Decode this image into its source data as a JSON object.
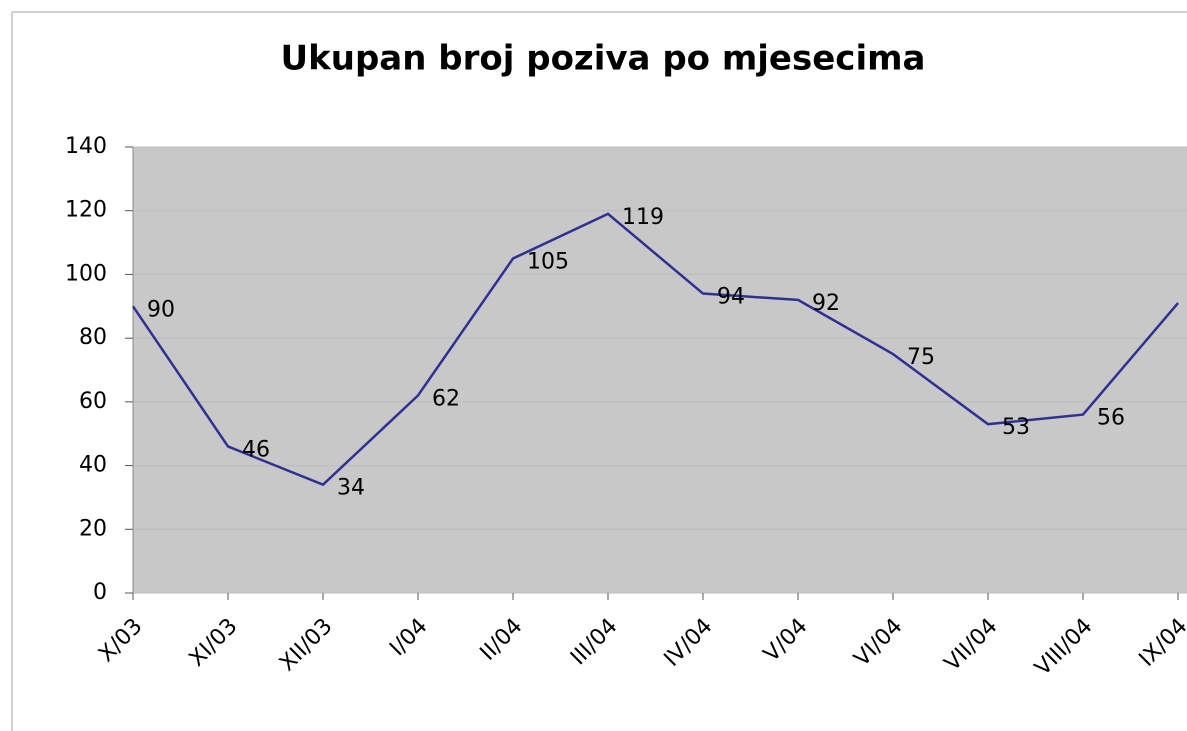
{
  "chart_data": {
    "type": "line",
    "title": "Ukupan broj poziva po mjesecima",
    "categories": [
      "X/03",
      "XI/03",
      "XII/03",
      "I/04",
      "II/04",
      "III/04",
      "IV/04",
      "V/04",
      "VI/04",
      "VII/04",
      "VIII/04",
      "IX/04"
    ],
    "values": [
      90,
      46,
      34,
      62,
      105,
      119,
      94,
      92,
      75,
      53,
      56,
      91
    ],
    "color": "#2e3192",
    "ylim": [
      0,
      140
    ],
    "yticks": [
      0,
      20,
      40,
      60,
      80,
      100,
      120,
      140
    ],
    "grid": true
  }
}
